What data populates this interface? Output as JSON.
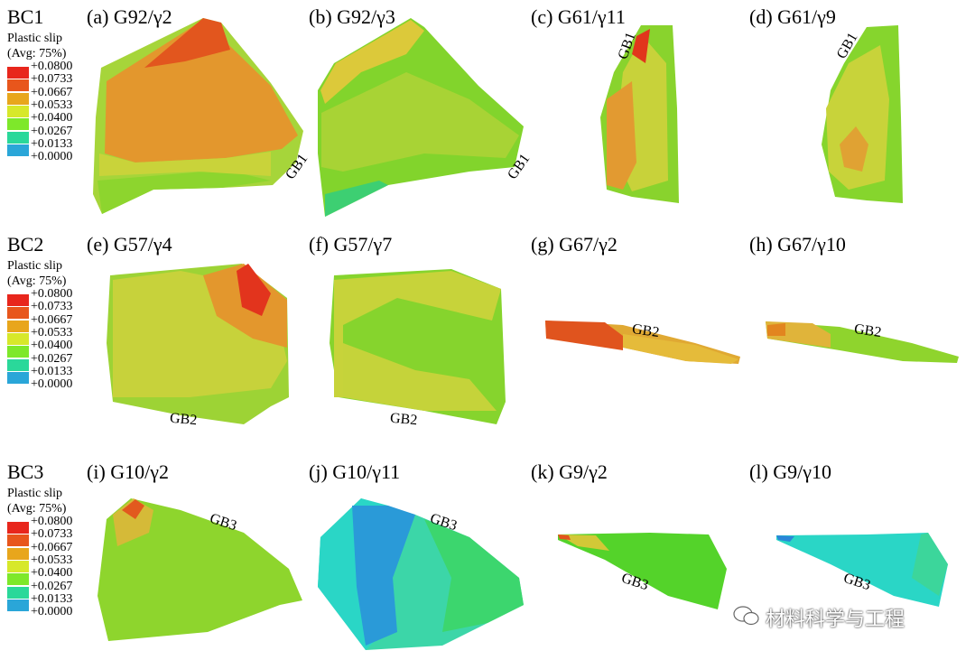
{
  "colors": {
    "red": "#e8261c",
    "orange_red": "#e0521e",
    "orange": "#e88a2a",
    "yellow_green": "#c8d236",
    "yellow": "#d9d93a",
    "green": "#7fd12c",
    "bright_green": "#55d32a",
    "teal_green": "#3cd66e",
    "cyan": "#2ad6c6",
    "blue_cyan": "#2a9ad8",
    "blue": "#1f2fd8"
  },
  "legend": {
    "title_line1": "Plastic slip",
    "title_line2": "(Avg: 75%)",
    "ticks": [
      "+0.0800",
      "+0.0733",
      "+0.0667",
      "+0.0533",
      "+0.0400",
      "+0.0267",
      "+0.0133",
      "+0.0000"
    ],
    "swatch_colors": [
      "#e8261c",
      "#e8561c",
      "#e8a61c",
      "#d7e82a",
      "#7ee82a",
      "#2ad89a",
      "#2aa6d8",
      "#1f2fd8"
    ]
  },
  "rows": [
    {
      "bc": "BC1",
      "panels": [
        {
          "title": "(a) G92/γ2",
          "gb": "GB1"
        },
        {
          "title": "(b) G92/γ3",
          "gb": "GB1"
        },
        {
          "title": "(c) G61/γ11",
          "gb": "GB1"
        },
        {
          "title": "(d) G61/γ9",
          "gb": "GB1"
        }
      ]
    },
    {
      "bc": "BC2",
      "panels": [
        {
          "title": "(e) G57/γ4",
          "gb": "GB2"
        },
        {
          "title": "(f) G57/γ7",
          "gb": "GB2"
        },
        {
          "title": "(g) G67/γ2",
          "gb": "GB2"
        },
        {
          "title": "(h) G67/γ10",
          "gb": "GB2"
        }
      ]
    },
    {
      "bc": "BC3",
      "panels": [
        {
          "title": "(i) G10/γ2",
          "gb": "GB3"
        },
        {
          "title": "(j) G10/γ11",
          "gb": "GB3"
        },
        {
          "title": "(k) G9/γ2",
          "gb": "GB3"
        },
        {
          "title": "(l) G9/γ10",
          "gb": "GB3"
        }
      ]
    }
  ],
  "watermark": "材料科学与工程"
}
